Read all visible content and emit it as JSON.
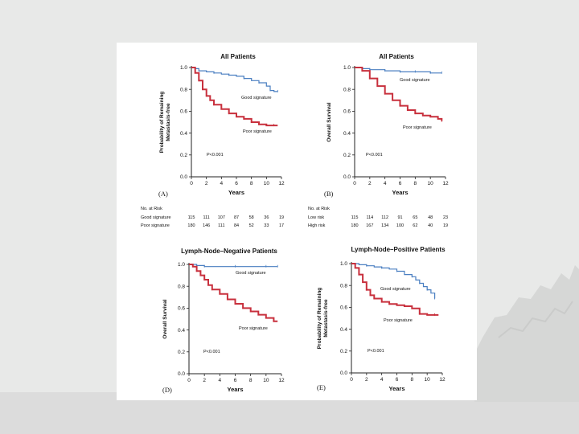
{
  "colors": {
    "good": "#4a7fc1",
    "poor": "#c8303d",
    "axis": "#222222",
    "page_bg": "#e8e9e8",
    "figure_bg": "#ffffff"
  },
  "chart_data": [
    {
      "id": "A",
      "type": "line",
      "panel_label": "(A)",
      "title": "All Patients",
      "ylabel_lines": [
        "Probability of Remaining",
        "Metastasis-free"
      ],
      "xlabel": "Years",
      "xlim": [
        0,
        12
      ],
      "ylim": [
        0,
        1
      ],
      "xticks": [
        "0",
        "2",
        "4",
        "6",
        "8",
        "10",
        "12"
      ],
      "yticks": [
        "0.0",
        "0.2",
        "0.4",
        "0.6",
        "0.8",
        "1.0"
      ],
      "pvalue": "P<0.001",
      "series": [
        {
          "name": "Good signature",
          "color_key": "good",
          "x": [
            0,
            0.5,
            1,
            2,
            3,
            4,
            5,
            6,
            7,
            8,
            9,
            10,
            10.5,
            11,
            11.5
          ],
          "y": [
            1.0,
            0.99,
            0.97,
            0.96,
            0.95,
            0.94,
            0.93,
            0.92,
            0.9,
            0.88,
            0.86,
            0.83,
            0.79,
            0.78,
            0.78
          ]
        },
        {
          "name": "Poor signature",
          "color_key": "poor",
          "x": [
            0,
            0.5,
            1,
            1.5,
            2,
            2.5,
            3,
            4,
            5,
            6,
            7,
            8,
            9,
            10,
            11,
            11.5
          ],
          "y": [
            1.0,
            0.95,
            0.88,
            0.8,
            0.74,
            0.7,
            0.66,
            0.62,
            0.58,
            0.55,
            0.53,
            0.5,
            0.48,
            0.47,
            0.47,
            0.47
          ]
        }
      ]
    },
    {
      "id": "B",
      "type": "line",
      "panel_label": "(B)",
      "title": "All Patients",
      "ylabel_lines": [
        "Overall Survival"
      ],
      "xlabel": "Years",
      "xlim": [
        0,
        12
      ],
      "ylim": [
        0,
        1
      ],
      "xticks": [
        "0",
        "2",
        "4",
        "6",
        "8",
        "10",
        "12"
      ],
      "yticks": [
        "0.0",
        "0.2",
        "0.4",
        "0.6",
        "0.8",
        "1.0"
      ],
      "pvalue": "P<0.001",
      "series": [
        {
          "name": "Good signature",
          "color_key": "good",
          "x": [
            0,
            1,
            2,
            3,
            4,
            5,
            6,
            7,
            8,
            9,
            10,
            11,
            11.5
          ],
          "y": [
            1.0,
            0.99,
            0.98,
            0.98,
            0.97,
            0.97,
            0.96,
            0.96,
            0.96,
            0.96,
            0.95,
            0.95,
            0.95
          ]
        },
        {
          "name": "Poor signature",
          "color_key": "poor",
          "x": [
            0,
            1,
            2,
            3,
            4,
            5,
            6,
            7,
            8,
            9,
            10,
            11,
            11.5
          ],
          "y": [
            1.0,
            0.97,
            0.9,
            0.83,
            0.76,
            0.7,
            0.65,
            0.61,
            0.58,
            0.56,
            0.55,
            0.53,
            0.51
          ]
        }
      ]
    },
    {
      "id": "D",
      "type": "line",
      "panel_label": "(D)",
      "title": "Lymph-Node–Negative Patients",
      "ylabel_lines": [
        "Overall Survival"
      ],
      "xlabel": "Years",
      "xlim": [
        0,
        12
      ],
      "ylim": [
        0,
        1
      ],
      "xticks": [
        "0",
        "2",
        "4",
        "6",
        "8",
        "10",
        "12"
      ],
      "yticks": [
        "0.0",
        "0.2",
        "0.4",
        "0.6",
        "0.8",
        "1.0"
      ],
      "pvalue": "P<0.001",
      "series": [
        {
          "name": "Good signature",
          "color_key": "good",
          "x": [
            0,
            1,
            2,
            4,
            6,
            8,
            10,
            11,
            11.5
          ],
          "y": [
            1.0,
            0.99,
            0.98,
            0.98,
            0.98,
            0.98,
            0.98,
            0.98,
            0.98
          ]
        },
        {
          "name": "Poor signature",
          "color_key": "poor",
          "x": [
            0,
            0.5,
            1,
            1.5,
            2,
            2.5,
            3,
            4,
            5,
            6,
            7,
            8,
            9,
            10,
            11,
            11.5
          ],
          "y": [
            1.0,
            0.98,
            0.94,
            0.9,
            0.86,
            0.81,
            0.77,
            0.73,
            0.68,
            0.64,
            0.6,
            0.57,
            0.54,
            0.51,
            0.48,
            0.48
          ]
        }
      ]
    },
    {
      "id": "E",
      "type": "line",
      "panel_label": "(E)",
      "title": "Lymph-Node–Positive Patients",
      "ylabel_lines": [
        "Probability of Remaining",
        "Metastasis-free"
      ],
      "xlabel": "Years",
      "xlim": [
        0,
        12
      ],
      "ylim": [
        0,
        1
      ],
      "xticks": [
        "0",
        "2",
        "4",
        "6",
        "8",
        "10",
        "12"
      ],
      "yticks": [
        "0.0",
        "0.2",
        "0.4",
        "0.6",
        "0.8",
        "1.0"
      ],
      "pvalue": "P<0.001",
      "series": [
        {
          "name": "Good signature",
          "color_key": "good",
          "x": [
            0,
            1,
            2,
            3,
            4,
            5,
            6,
            7,
            8,
            8.5,
            9,
            9.5,
            10,
            10.5,
            11
          ],
          "y": [
            1.0,
            0.99,
            0.98,
            0.97,
            0.96,
            0.95,
            0.93,
            0.9,
            0.88,
            0.85,
            0.82,
            0.79,
            0.76,
            0.73,
            0.68
          ]
        },
        {
          "name": "Poor signature",
          "color_key": "poor",
          "x": [
            0,
            0.5,
            1,
            1.5,
            2,
            2.5,
            3,
            4,
            5,
            6,
            7,
            8,
            9,
            10,
            11,
            11.5
          ],
          "y": [
            1.0,
            0.96,
            0.9,
            0.83,
            0.76,
            0.71,
            0.68,
            0.65,
            0.63,
            0.62,
            0.61,
            0.59,
            0.54,
            0.53,
            0.53,
            0.53
          ]
        }
      ]
    }
  ],
  "risk_tables": [
    {
      "id": "A",
      "header": "No. at Risk",
      "rows": [
        {
          "label": "Good signature",
          "values": [
            "115",
            "111",
            "107",
            "87",
            "58",
            "36",
            "19"
          ]
        },
        {
          "label": "Poor signature",
          "values": [
            "180",
            "146",
            "111",
            "84",
            "52",
            "33",
            "17"
          ]
        }
      ]
    },
    {
      "id": "B",
      "header": "No. at Risk",
      "rows": [
        {
          "label": "Low risk",
          "values": [
            "115",
            "114",
            "112",
            "91",
            "65",
            "48",
            "23"
          ]
        },
        {
          "label": "High risk",
          "values": [
            "180",
            "167",
            "134",
            "100",
            "62",
            "40",
            "19"
          ]
        }
      ]
    }
  ]
}
